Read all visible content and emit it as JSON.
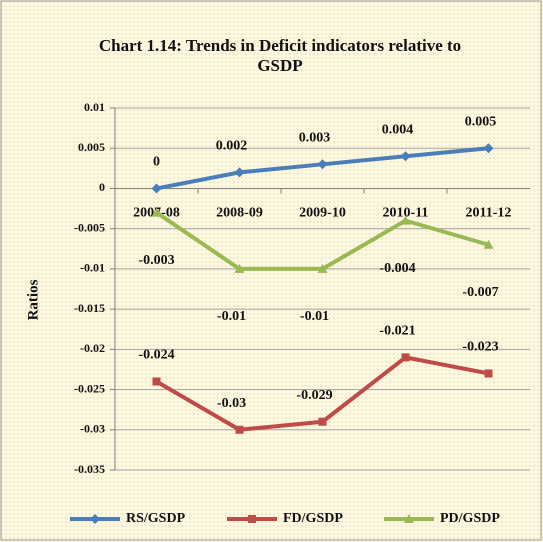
{
  "chart_data": {
    "type": "line",
    "title": "Chart 1.14: Trends in Deficit indicators relative to GSDP",
    "y_label": "Ratios",
    "categories": [
      "2007-08",
      "2008-09",
      "2009-10",
      "2010-11",
      "2011-12"
    ],
    "series": [
      {
        "name": "RS/GSDP",
        "color": "#4a7ebb",
        "marker": "diamond",
        "values": [
          0,
          0.002,
          0.003,
          0.004,
          0.005
        ]
      },
      {
        "name": "FD/GSDP",
        "color": "#be4b48",
        "marker": "square",
        "values": [
          -0.024,
          -0.03,
          -0.029,
          -0.021,
          -0.023
        ]
      },
      {
        "name": "PD/GSDP",
        "color": "#98b954",
        "marker": "triangle",
        "values": [
          -0.003,
          -0.01,
          -0.01,
          -0.004,
          -0.007
        ]
      }
    ],
    "ylim": [
      -0.035,
      0.01
    ],
    "yticks": [
      0.01,
      0.005,
      0,
      -0.005,
      -0.01,
      -0.015,
      -0.02,
      -0.025,
      -0.03,
      -0.035
    ],
    "grid": true,
    "legend": "bottom"
  }
}
